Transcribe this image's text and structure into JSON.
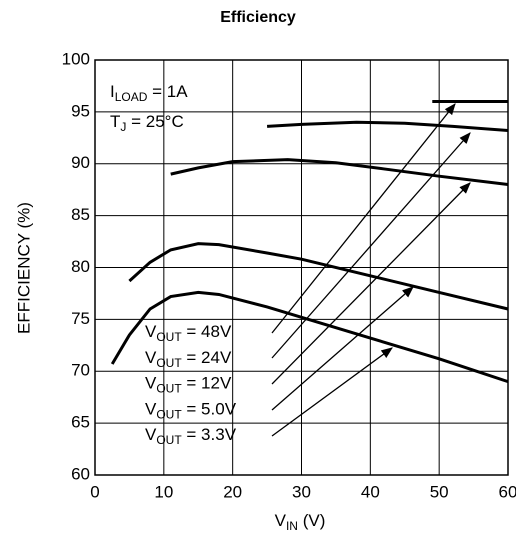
{
  "chart_data": {
    "type": "line",
    "title": "Efficiency",
    "x_label": {
      "base": "V",
      "sub": "IN",
      "text": " (V)"
    },
    "y_label": "EFFICIENCY (%)",
    "annotations": [
      {
        "base": "I",
        "sub": "LOAD",
        "text": " = 1A"
      },
      {
        "base": "T",
        "sub": "J",
        "text": " = 25°C"
      }
    ],
    "xlim": [
      0,
      60
    ],
    "xticks": [
      0,
      10,
      20,
      30,
      40,
      50,
      60
    ],
    "ylim": [
      60,
      100
    ],
    "yticks": [
      60,
      65,
      70,
      75,
      80,
      85,
      90,
      95,
      100
    ],
    "grid": true,
    "series": [
      {
        "label": {
          "base": "V",
          "sub": "OUT",
          "text": " = 48V"
        },
        "color": "#000000",
        "x": [
          49,
          60
        ],
        "values": [
          96,
          96
        ]
      },
      {
        "label": {
          "base": "V",
          "sub": "OUT",
          "text": " = 24V"
        },
        "color": "#000000",
        "x": [
          25,
          30,
          38,
          45,
          52,
          60
        ],
        "values": [
          93.6,
          93.8,
          94,
          93.9,
          93.6,
          93.2
        ]
      },
      {
        "label": {
          "base": "V",
          "sub": "OUT",
          "text": " = 12V"
        },
        "color": "#000000",
        "x": [
          11,
          15,
          20,
          28,
          35,
          42,
          50,
          60
        ],
        "values": [
          89,
          89.6,
          90.2,
          90.4,
          90.1,
          89.5,
          88.8,
          88
        ]
      },
      {
        "label": {
          "base": "V",
          "sub": "OUT",
          "text": " = 5.0V"
        },
        "color": "#000000",
        "x": [
          5,
          8,
          11,
          15,
          18,
          25,
          30,
          40,
          50,
          60
        ],
        "values": [
          78.7,
          80.5,
          81.7,
          82.3,
          82.2,
          81.4,
          80.8,
          79.2,
          77.6,
          76
        ]
      },
      {
        "label": {
          "base": "V",
          "sub": "OUT",
          "text": " = 3.3V"
        },
        "color": "#000000",
        "x": [
          2.5,
          5,
          8,
          11,
          15,
          18,
          25,
          30,
          40,
          50,
          60
        ],
        "values": [
          70.7,
          73.5,
          76,
          77.2,
          77.6,
          77.4,
          76.2,
          75.2,
          73.2,
          71.2,
          69
        ]
      }
    ]
  }
}
